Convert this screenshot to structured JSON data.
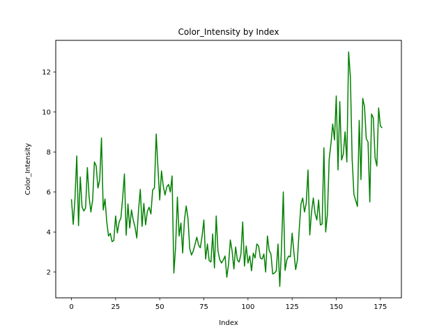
{
  "chart_data": {
    "type": "line",
    "title": "Color_Intensity by Index",
    "xlabel": "Index",
    "ylabel": "Color_Intensity",
    "xlim": [
      -8.9,
      186.9
    ],
    "ylim": [
      0.71,
      13.58
    ],
    "xticks": [
      0,
      25,
      50,
      75,
      100,
      125,
      150,
      175
    ],
    "yticks": [
      2,
      4,
      6,
      8,
      10,
      12
    ],
    "grid": false,
    "color": "#008000",
    "series": [
      {
        "values": [
          5.64,
          4.38,
          5.68,
          7.8,
          4.32,
          6.75,
          5.25,
          5.05,
          5.2,
          7.22,
          5.75,
          5.0,
          5.6,
          7.5,
          7.3,
          6.2,
          6.6,
          8.7,
          5.1,
          5.65,
          4.5,
          3.8,
          3.93,
          3.52,
          3.58,
          4.8,
          3.95,
          4.5,
          4.7,
          5.7,
          6.9,
          3.84,
          5.4,
          4.2,
          5.1,
          4.6,
          4.25,
          3.7,
          5.1,
          6.13,
          4.28,
          5.43,
          4.36,
          5.04,
          5.24,
          4.9,
          6.1,
          6.2,
          8.9,
          7.2,
          5.6,
          7.05,
          6.3,
          5.85,
          6.25,
          6.38,
          6.0,
          6.8,
          1.95,
          3.27,
          5.75,
          3.8,
          4.45,
          2.95,
          4.6,
          5.3,
          4.68,
          3.17,
          2.85,
          3.05,
          3.38,
          3.74,
          3.35,
          3.21,
          3.8,
          4.6,
          2.65,
          3.4,
          2.57,
          2.5,
          3.9,
          2.2,
          4.8,
          3.05,
          2.62,
          2.45,
          2.6,
          2.8,
          1.74,
          2.4,
          3.6,
          3.05,
          2.15,
          3.25,
          2.6,
          2.5,
          2.9,
          4.5,
          2.3,
          3.3,
          2.45,
          2.8,
          2.06,
          2.94,
          2.7,
          3.4,
          3.3,
          2.7,
          2.65,
          2.9,
          2.0,
          3.8,
          3.08,
          2.9,
          1.9,
          1.95,
          2.06,
          3.4,
          1.28,
          3.25,
          6.0,
          2.08,
          2.6,
          2.8,
          2.76,
          3.94,
          3.0,
          2.12,
          2.6,
          4.1,
          5.4,
          5.7,
          5.0,
          5.45,
          7.1,
          3.85,
          5.0,
          5.7,
          4.92,
          4.6,
          5.6,
          4.35,
          4.4,
          8.21,
          4.0,
          4.9,
          7.65,
          8.42,
          9.4,
          8.6,
          10.8,
          7.1,
          10.52,
          7.6,
          7.9,
          9.01,
          7.5,
          13.0,
          11.75,
          7.65,
          5.88,
          5.58,
          5.28,
          9.58,
          6.62,
          10.68,
          10.26,
          8.66,
          8.5,
          5.5,
          9.899999,
          9.7,
          7.7,
          7.3,
          10.2,
          9.3,
          9.2
        ]
      }
    ]
  }
}
